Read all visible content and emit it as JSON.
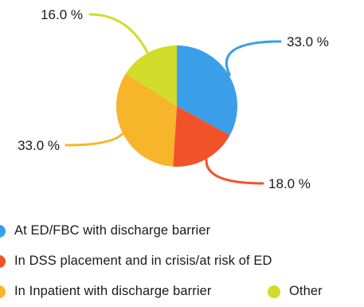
{
  "chart_data": {
    "type": "pie",
    "title": "",
    "slices": [
      {
        "label": "At ED/FBC with discharge barrier",
        "value": 33.0,
        "display": "33.0 %",
        "color": "#3a9fe8"
      },
      {
        "label": "In DSS placement and in crisis/at risk of ED",
        "value": 18.0,
        "display": "18.0 %",
        "color": "#f2522a"
      },
      {
        "label": "In Inpatient with discharge barrier",
        "value": 33.0,
        "display": "33.0 %",
        "color": "#f6b52a"
      },
      {
        "label": "Other",
        "value": 16.0,
        "display": "16.0 %",
        "color": "#d2dc2a"
      }
    ],
    "legend_position": "bottom"
  }
}
